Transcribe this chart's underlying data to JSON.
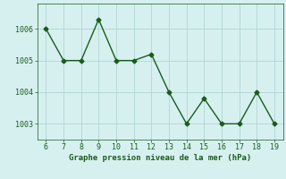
{
  "x": [
    6,
    7,
    8,
    9,
    10,
    11,
    12,
    13,
    14,
    15,
    16,
    17,
    18,
    19
  ],
  "y": [
    1006.0,
    1005.0,
    1005.0,
    1006.3,
    1005.0,
    1005.0,
    1005.2,
    1004.0,
    1003.0,
    1003.8,
    1003.0,
    1003.0,
    1004.0,
    1003.0
  ],
  "line_color": "#1a5c1a",
  "marker": "D",
  "marker_size": 2.5,
  "bg_color": "#d6f0f0",
  "grid_color": "#b8d8d8",
  "xlabel": "Graphe pression niveau de la mer (hPa)",
  "xlim": [
    5.5,
    19.5
  ],
  "ylim": [
    1002.5,
    1006.8
  ],
  "yticks": [
    1003,
    1004,
    1005,
    1006
  ],
  "xticks": [
    6,
    7,
    8,
    9,
    10,
    11,
    12,
    13,
    14,
    15,
    16,
    17,
    18,
    19
  ],
  "xlabel_fontsize": 6.5,
  "tick_fontsize": 6,
  "line_width": 1.0
}
